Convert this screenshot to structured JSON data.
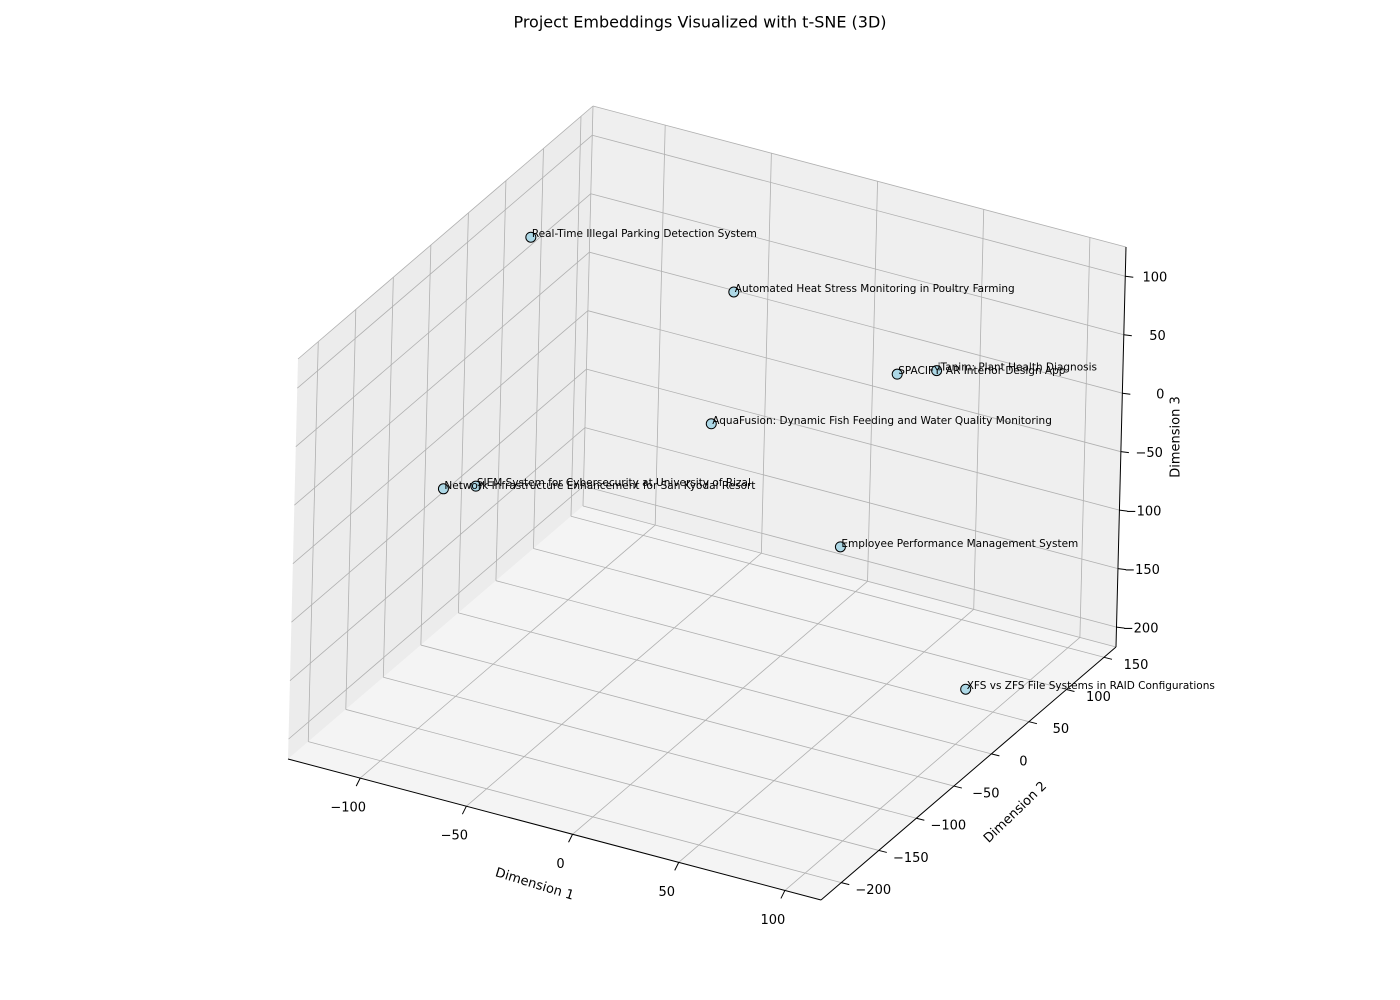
{
  "chart_data": {
    "type": "scatter3d",
    "title": "Project Embeddings Visualized with t-SNE (3D)",
    "xlabel": "Dimension 1",
    "ylabel": "Dimension 2",
    "zlabel": "Dimension 3",
    "labels": [
      "Real-Time Illegal Parking Detection System",
      "Automated Heat Stress Monitoring in Poultry Farming",
      "iTanim: Plant Health Diagnosis",
      "SPACIFY: AR Interior Design App",
      "AquaFusion: Dynamic Fish Feeding and Water Quality Monitoring",
      "SIEM System for Cybersecurity at University of Rizal",
      "Network Infrastructure Enhancement for San Kyodai Resort",
      "Employee Performance Management System",
      "XFS vs ZFS File Systems in RAID Configurations"
    ],
    "x": [
      -121,
      -12,
      57,
      52,
      -21,
      -117,
      -105,
      68,
      108
    ],
    "y": [
      48,
      9,
      87,
      48,
      9,
      -30,
      -109,
      -70,
      -11
    ],
    "z": [
      84,
      111,
      34,
      50,
      -6,
      -84,
      -37,
      -25,
      -160
    ],
    "color": "#add8e6",
    "edgecolor": "#000000",
    "xlim": [
      -134,
      117
    ],
    "ylim": [
      -227,
      166
    ],
    "zlim": [
      -217,
      125
    ],
    "xticks": [
      {
        "value": -100,
        "label": "−100"
      },
      {
        "value": -50,
        "label": "−50"
      },
      0,
      50,
      100
    ],
    "yticks": [
      {
        "value": -200,
        "label": "−200"
      },
      {
        "value": -150,
        "label": "−150"
      },
      {
        "value": -100,
        "label": "−100"
      },
      {
        "value": -50,
        "label": "−50"
      },
      0,
      50,
      100,
      150
    ],
    "zticks": [
      {
        "value": -200,
        "label": "−200"
      },
      {
        "value": -150,
        "label": "−150"
      },
      {
        "value": -100,
        "label": "−100"
      },
      {
        "value": -50,
        "label": "−50"
      },
      0,
      50,
      100
    ],
    "grid": true
  }
}
